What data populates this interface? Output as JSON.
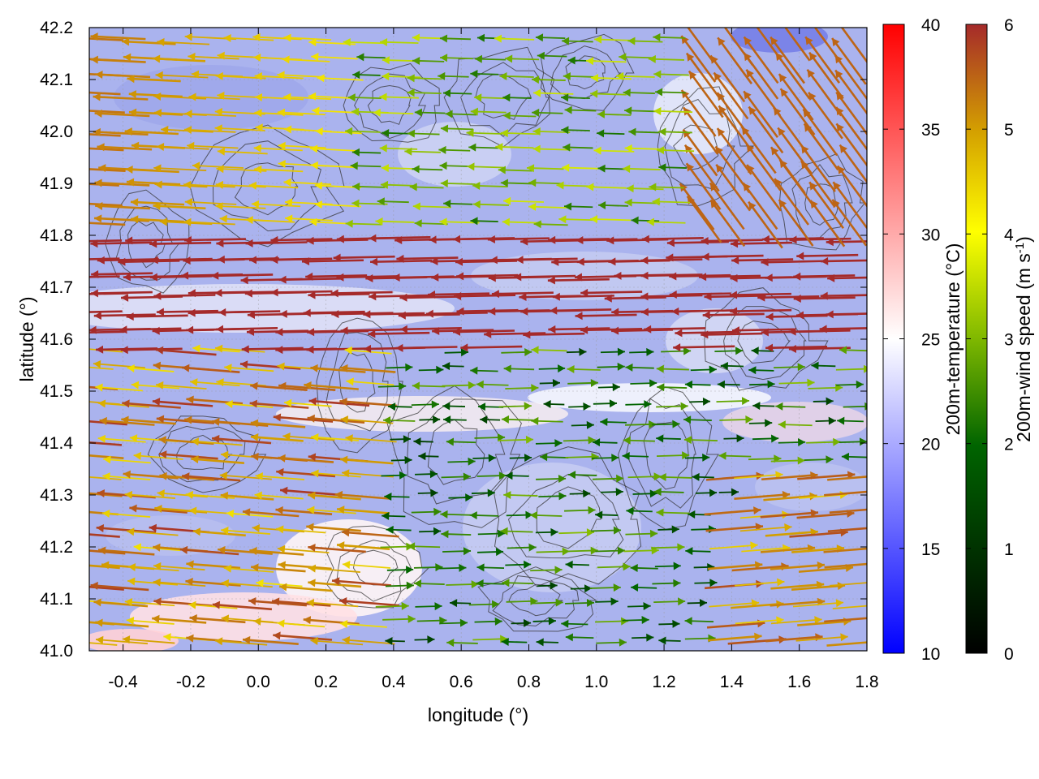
{
  "chart_data": {
    "type": "heatmap",
    "title": "",
    "xlabel": "longitude (°)",
    "ylabel": "latitude (°)",
    "xlim": [
      -0.5,
      1.8
    ],
    "ylim": [
      41.0,
      42.2
    ],
    "x_ticks": [
      "-0.4",
      "-0.2",
      "0.0",
      "0.2",
      "0.4",
      "0.6",
      "0.8",
      "1.0",
      "1.2",
      "1.4",
      "1.6",
      "1.8"
    ],
    "y_ticks": [
      "41.0",
      "41.1",
      "41.2",
      "41.3",
      "41.4",
      "41.5",
      "41.6",
      "41.7",
      "41.8",
      "41.9",
      "42.0",
      "42.1",
      "42.2"
    ],
    "grid": true,
    "layers": [
      "200m-temperature shading",
      "terrain contours",
      "200m-wind vectors"
    ],
    "temperature_colorbar": {
      "label": "200m-temperature (°C)",
      "range": [
        10,
        40
      ],
      "ticks": [
        "10",
        "15",
        "20",
        "25",
        "30",
        "35",
        "40"
      ],
      "colors": [
        "#0000ff",
        "#ffffff",
        "#ff0000"
      ]
    },
    "wind_colorbar": {
      "label_main": "200m-wind speed (m s",
      "label_sup": "-1",
      "label_end": ")",
      "range": [
        0,
        6
      ],
      "ticks": [
        "0",
        "1",
        "2",
        "3",
        "4",
        "5",
        "6"
      ],
      "colors": [
        "#000000",
        "#006400",
        "#7fb800",
        "#ffff00",
        "#d4a000",
        "#a52a2a"
      ]
    },
    "wind_regimes": [
      {
        "region": "north-west",
        "direction": "westward",
        "speed": 5.5
      },
      {
        "region": "central band 41.6-41.8",
        "direction": "westward",
        "speed": 6.0
      },
      {
        "region": "north-east",
        "direction": "north-westward",
        "speed": 5.5
      },
      {
        "region": "south-west",
        "direction": "westward",
        "speed": 4.5
      },
      {
        "region": "south-center",
        "direction": "eastward",
        "speed": 2.0
      },
      {
        "region": "south-east",
        "direction": "eastward",
        "speed": 5.0
      },
      {
        "region": "east-center",
        "direction": "mixed",
        "speed": 2.5
      }
    ]
  }
}
